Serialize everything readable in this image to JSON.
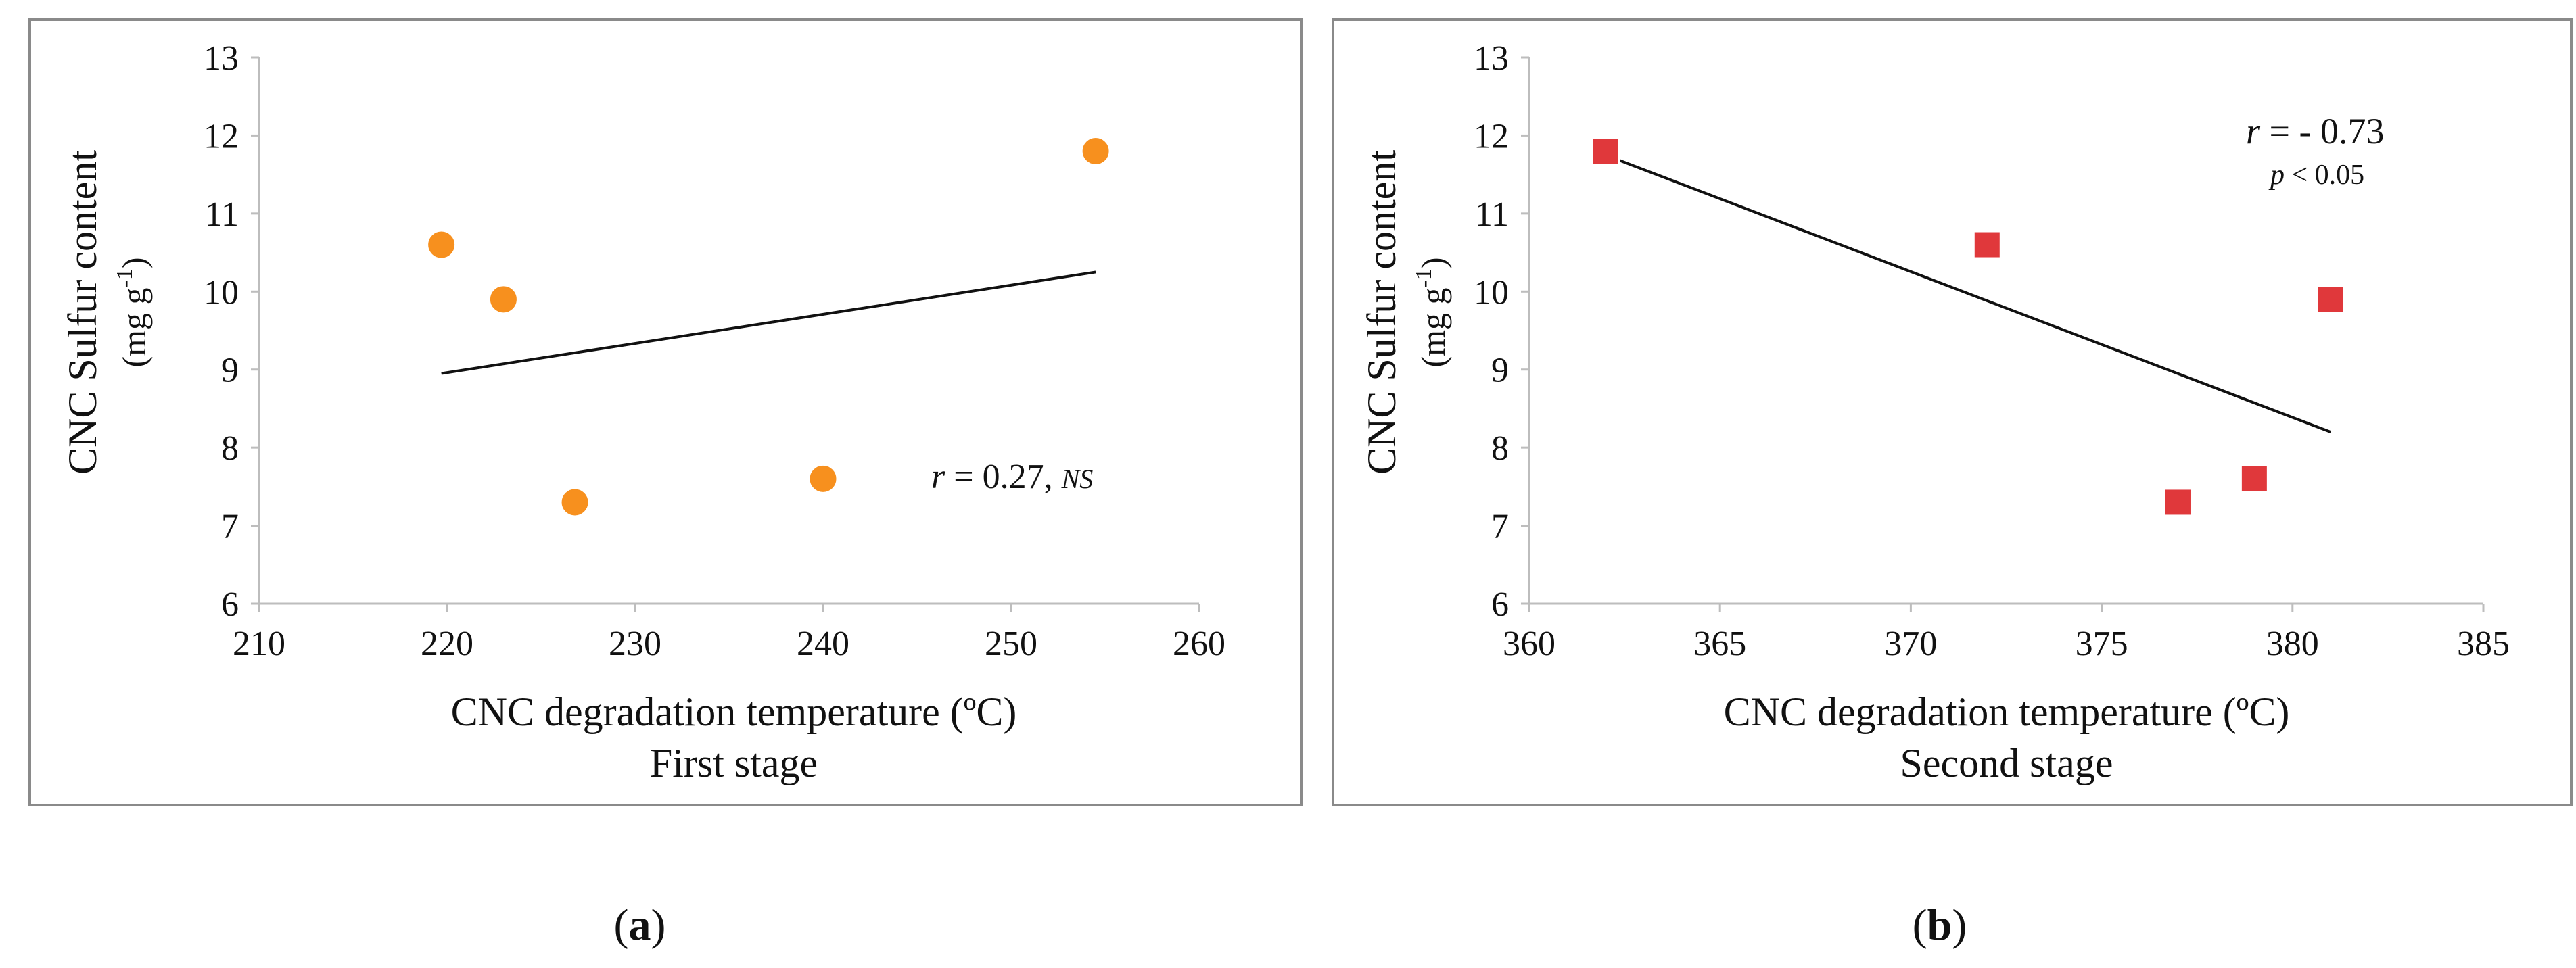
{
  "colors": {
    "panel_border": "#8a8a8a",
    "axis": "#bdbdbd",
    "trendline": "#111111",
    "series_a": "#f7901e",
    "series_b": "#e0383b",
    "text": "#111111"
  },
  "chart_data": [
    {
      "type": "scatter",
      "panel_label": "a",
      "marker": "circle",
      "xlabel": "CNC degradation temperature (ºC)",
      "xlabel_sub": "First stage",
      "ylabel": "CNC Sulfur content",
      "ylabel_unit_base": "(mg g",
      "ylabel_unit_sup": "-1",
      "ylabel_unit_close": ")",
      "xlim": [
        210,
        260
      ],
      "xticks": [
        210,
        220,
        230,
        240,
        250,
        260
      ],
      "ylim": [
        6,
        13
      ],
      "yticks": [
        6,
        7,
        8,
        9,
        10,
        11,
        12,
        13
      ],
      "grid": false,
      "points": [
        {
          "x": 219.7,
          "y": 10.6
        },
        {
          "x": 223,
          "y": 9.9
        },
        {
          "x": 226.8,
          "y": 7.3
        },
        {
          "x": 240,
          "y": 7.6
        },
        {
          "x": 254.5,
          "y": 11.8
        }
      ],
      "trendline": {
        "x": [
          219.7,
          254.5
        ],
        "y": [
          8.95,
          10.25
        ]
      },
      "annotation": {
        "r_symbol": "r",
        "r_text": " = 0.27, ",
        "sig": "NS"
      }
    },
    {
      "type": "scatter",
      "panel_label": "b",
      "marker": "square",
      "xlabel": "CNC degradation temperature (ºC)",
      "xlabel_sub": "Second stage",
      "ylabel": "CNC Sulfur content",
      "ylabel_unit_base": "(mg g",
      "ylabel_unit_sup": "-1",
      "ylabel_unit_close": ")",
      "xlim": [
        360,
        385
      ],
      "xticks": [
        360,
        365,
        370,
        375,
        380,
        385
      ],
      "ylim": [
        6,
        13
      ],
      "yticks": [
        6,
        7,
        8,
        9,
        10,
        11,
        12,
        13
      ],
      "grid": false,
      "points": [
        {
          "x": 362,
          "y": 11.8
        },
        {
          "x": 372,
          "y": 10.6
        },
        {
          "x": 377,
          "y": 7.3
        },
        {
          "x": 379,
          "y": 7.6
        },
        {
          "x": 381,
          "y": 9.9
        }
      ],
      "trendline": {
        "x": [
          362,
          381
        ],
        "y": [
          11.75,
          8.2
        ]
      },
      "annotation": {
        "r_symbol": "r",
        "r_text": " = - 0.73",
        "p_symbol": "p",
        "p_text": " < 0.05"
      }
    }
  ]
}
